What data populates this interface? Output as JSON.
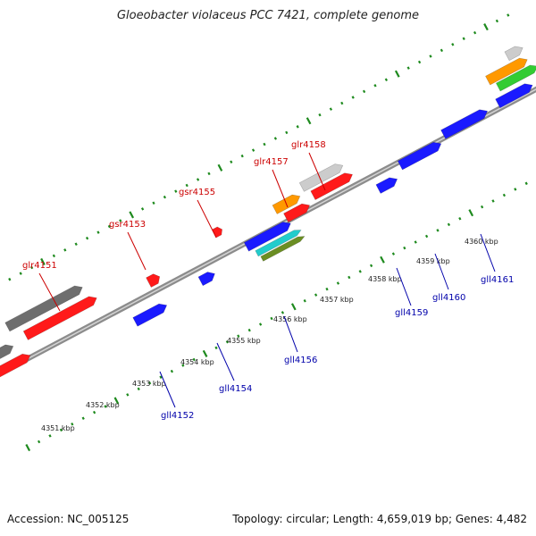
{
  "title": "Gloeobacter violaceus PCC 7421, complete genome",
  "footer": {
    "accession": "Accession: NC_005125",
    "stats": "Topology: circular; Length: 4,659,019 bp; Genes: 4,482"
  },
  "colors": {
    "forward_label": "#cc0000",
    "reverse_label": "#0000aa",
    "backbone": "#8c8c8c",
    "tick": "#1e8a1e",
    "red": "#ff1a1a",
    "blue": "#1a1aff",
    "gray": "#6e6e6e",
    "light_gray": "#cccccc",
    "orange": "#ff9900",
    "cyan": "#22cccc",
    "olive": "#6b8e23",
    "green": "#33cc33"
  },
  "kbp_labels": [
    "4351 kbp",
    "4352 kbp",
    "4353 kbp",
    "4354 kbp",
    "4355 kbp",
    "4356 kbp",
    "4357 kbp",
    "4358 kbp",
    "4359 kbp",
    "4360 kbp"
  ],
  "forward_gene_labels": [
    "glr4151",
    "gsr4153",
    "gsr4155",
    "glr4157",
    "glr4158"
  ],
  "reverse_gene_labels": [
    "gll4152",
    "gll4154",
    "gll4156",
    "gll4159",
    "gll4160",
    "gll4161"
  ]
}
